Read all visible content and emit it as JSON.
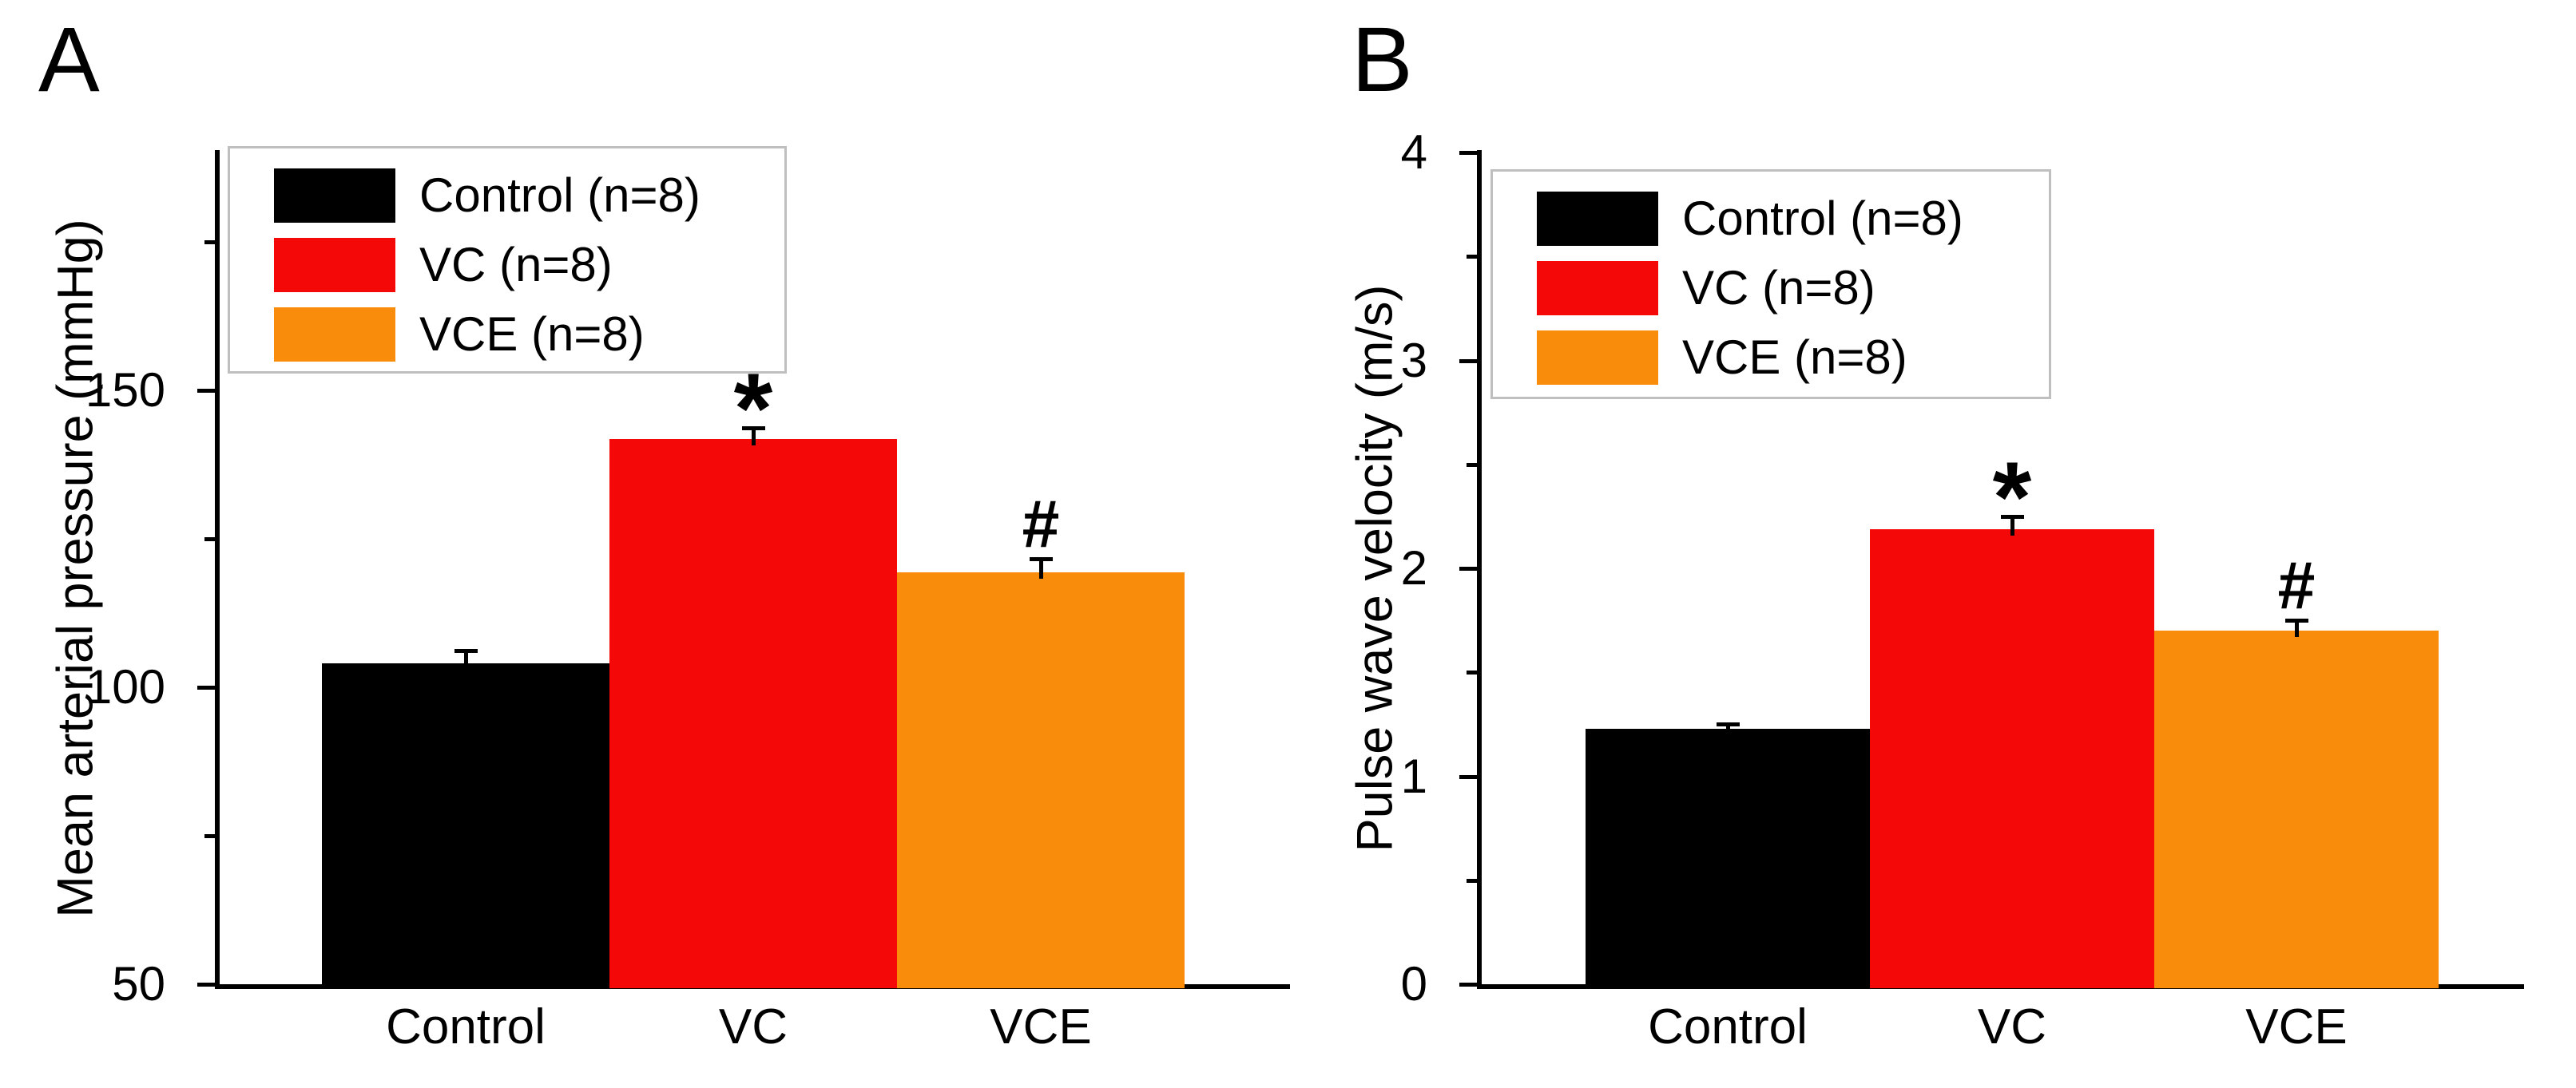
{
  "figure_title": "",
  "panels": [
    {
      "label": "A"
    },
    {
      "label": "B"
    }
  ],
  "colors": {
    "control": "#000000",
    "vc": "#f50808",
    "vce": "#f98c0a",
    "legend_border": "#bfbfbf",
    "axis": "#000000"
  },
  "chart_data": [
    {
      "type": "bar",
      "panel_label": "A",
      "title": "",
      "xlabel": "",
      "ylabel": "Mean arterial pressure (mmHg)",
      "categories": [
        "Control",
        "VC",
        "VCE"
      ],
      "values": [
        104,
        141.8,
        119.3
      ],
      "errors": [
        2.2,
        1.8,
        2.3
      ],
      "annotations": [
        "",
        "*",
        "#"
      ],
      "bar_colors": [
        "#000000",
        "#f50808",
        "#f98c0a"
      ],
      "ylim": [
        50,
        190
      ],
      "yticks": [
        50,
        100,
        150
      ],
      "minor_yticks": [
        75,
        125,
        175
      ],
      "grid": false,
      "legend": [
        "Control (n=8)",
        "VC (n=8)",
        "VCE (n=8)"
      ],
      "legend_position": "upper-left"
    },
    {
      "type": "bar",
      "panel_label": "B",
      "title": "",
      "xlabel": "",
      "ylabel": "Pulse wave velocity (m/s)",
      "categories": [
        "Control",
        "VC",
        "VCE"
      ],
      "values": [
        1.23,
        2.19,
        1.7
      ],
      "errors": [
        0.02,
        0.06,
        0.05
      ],
      "annotations": [
        "",
        "*",
        "#"
      ],
      "bar_colors": [
        "#000000",
        "#f50808",
        "#f98c0a"
      ],
      "ylim": [
        0,
        4
      ],
      "yticks": [
        0,
        1,
        2,
        3,
        4
      ],
      "minor_yticks": [
        0.5,
        1.5,
        2.5,
        3.5
      ],
      "grid": false,
      "legend": [
        "Control (n=8)",
        "VC (n=8)",
        "VCE (n=8)"
      ],
      "legend_position": "upper-left"
    }
  ]
}
